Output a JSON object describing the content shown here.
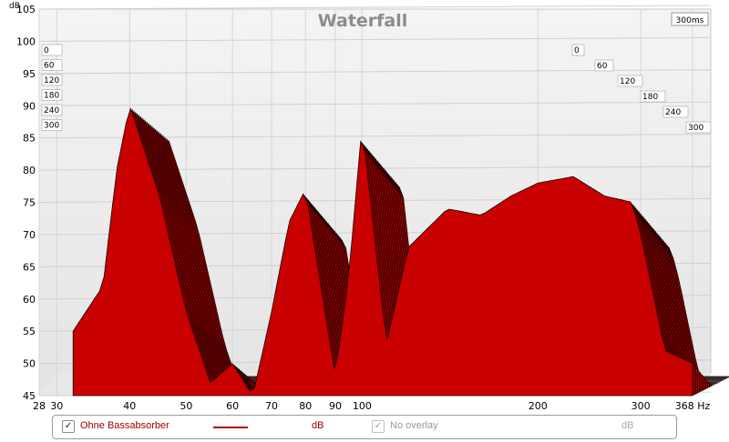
{
  "chart_data": {
    "type": "area",
    "title": "Waterfall",
    "ylabel": "dB",
    "xunit": "Hz",
    "y_ticks": [
      "105",
      "100",
      "95",
      "90",
      "85",
      "80",
      "75",
      "70",
      "65",
      "60",
      "55",
      "50",
      "45"
    ],
    "x_ticks": [
      "28",
      "30",
      "40",
      "50",
      "60",
      "70",
      "80",
      "90",
      "100",
      "200",
      "300",
      "368"
    ],
    "ylim": [
      45,
      105
    ],
    "xlim": [
      28,
      368
    ],
    "x_scale": "log",
    "time_label": "300ms",
    "time_ticks": [
      "0",
      "60",
      "120",
      "180",
      "240",
      "300"
    ],
    "series": [
      {
        "name": "Ohne Bassabsorber",
        "x": [
          32,
          36,
          38,
          40,
          45,
          50,
          55,
          60,
          65,
          70,
          75,
          80,
          85,
          90,
          95,
          100,
          110,
          120,
          140,
          160,
          180,
          200,
          230,
          260,
          290,
          300,
          330,
          368
        ],
        "y": [
          55,
          62,
          80,
          90,
          76,
          58,
          47,
          50,
          45,
          58,
          72,
          77,
          62,
          48,
          64,
          87,
          53,
          68,
          74,
          73,
          76,
          78,
          79,
          76,
          75,
          70,
          52,
          50
        ]
      }
    ]
  },
  "colors": {
    "fill": "#c80000",
    "stroke": "#1a0000",
    "panel": "#ececec",
    "title": "#8c8c8c"
  },
  "legend": {
    "series_label": "Ohne Bassabsorber",
    "series_unit": "dB",
    "overlay_label": "No overlay",
    "overlay_unit": "dB"
  }
}
